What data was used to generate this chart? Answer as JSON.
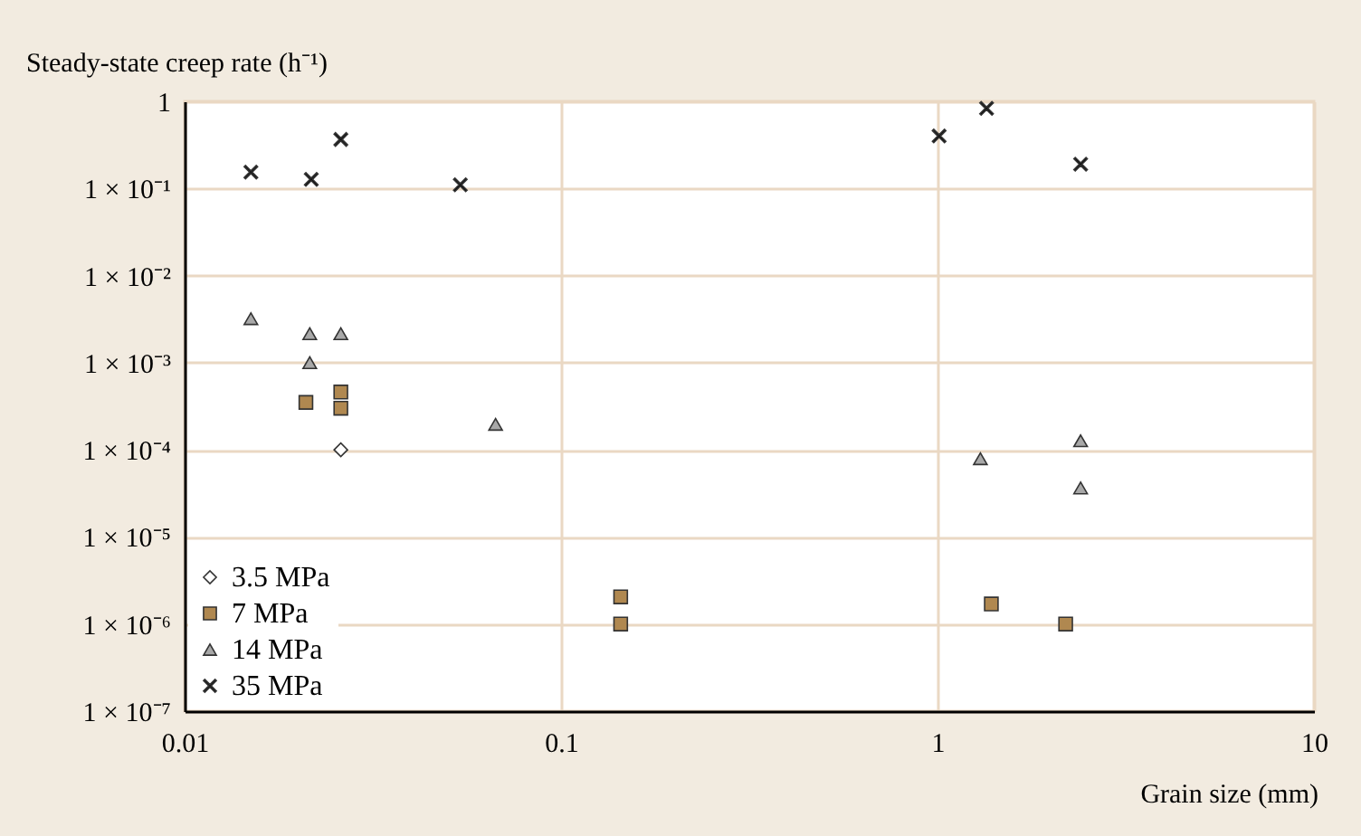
{
  "chart_data": {
    "type": "scatter",
    "xlabel": "Grain size (mm)",
    "ylabel": "Steady-state creep rate (h⁻¹)",
    "log": "xy",
    "grid": true,
    "legend": "bottom left",
    "xlim": [
      0.01,
      10
    ],
    "xticks": [
      0.01,
      0.1,
      1,
      10
    ],
    "ylim": [
      1e-07,
      1
    ],
    "yticks": [
      {
        "value": 1e-07,
        "label": "1 × 10⁻⁷"
      },
      {
        "value": 1e-06,
        "label": "1 × 10⁻⁶"
      },
      {
        "value": 1e-05,
        "label": "1 × 10⁻⁵"
      },
      {
        "value": 0.0001,
        "label": "1 × 10⁻⁴"
      },
      {
        "value": 0.001,
        "label": "1 × 10⁻³"
      },
      {
        "value": 0.01,
        "label": "1 × 10⁻²"
      },
      {
        "value": 0.1,
        "label": "1 × 10⁻¹"
      },
      1
    ],
    "series": [
      {
        "name": "3.5 MPa",
        "color": "#ffffff",
        "marker": "diamond",
        "x": [
          0.026
        ],
        "values": [
          0.0001
        ]
      },
      {
        "name": "7 MPa",
        "color": "#b08850",
        "marker": "square",
        "x": [
          0.021,
          0.026,
          0.026,
          0.144,
          0.144,
          1.39,
          2.19
        ],
        "values": [
          0.00035,
          0.00046,
          0.0003,
          2.05e-06,
          1e-06,
          1.7e-06,
          1e-06
        ]
      },
      {
        "name": "14 MPa",
        "color": "#a8a8a8",
        "marker": "triangle",
        "x": [
          0.015,
          0.0215,
          0.026,
          0.0215,
          0.067,
          1.3,
          2.4,
          2.4
        ],
        "values": [
          0.0032,
          0.00215,
          0.00215,
          0.001,
          0.000196,
          7.9e-05,
          0.000127,
          3.65e-05
        ]
      },
      {
        "name": "35 MPa",
        "color": "#000000",
        "marker": "cross",
        "x": [
          0.015,
          0.0217,
          0.026,
          0.054,
          1.01,
          1.35,
          2.4
        ],
        "values": [
          0.154,
          0.127,
          0.365,
          0.11,
          0.4,
          0.83,
          0.19
        ]
      }
    ]
  }
}
